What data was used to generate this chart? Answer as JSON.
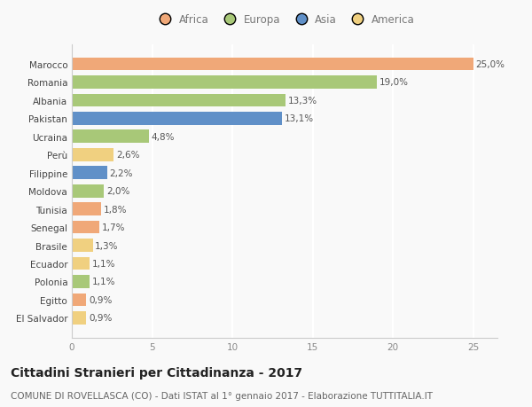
{
  "countries": [
    "Marocco",
    "Romania",
    "Albania",
    "Pakistan",
    "Ucraina",
    "Perù",
    "Filippine",
    "Moldova",
    "Tunisia",
    "Senegal",
    "Brasile",
    "Ecuador",
    "Polonia",
    "Egitto",
    "El Salvador"
  ],
  "values": [
    25.0,
    19.0,
    13.3,
    13.1,
    4.8,
    2.6,
    2.2,
    2.0,
    1.8,
    1.7,
    1.3,
    1.1,
    1.1,
    0.9,
    0.9
  ],
  "labels": [
    "25,0%",
    "19,0%",
    "13,3%",
    "13,1%",
    "4,8%",
    "2,6%",
    "2,2%",
    "2,0%",
    "1,8%",
    "1,7%",
    "1,3%",
    "1,1%",
    "1,1%",
    "0,9%",
    "0,9%"
  ],
  "continents": [
    "Africa",
    "Europa",
    "Europa",
    "Asia",
    "Europa",
    "America",
    "Asia",
    "Europa",
    "Africa",
    "Africa",
    "America",
    "America",
    "Europa",
    "Africa",
    "America"
  ],
  "continent_colors": {
    "Africa": "#F0A878",
    "Europa": "#A8C878",
    "Asia": "#6090C8",
    "America": "#F0D080"
  },
  "xlim": [
    0,
    26.5
  ],
  "xticks": [
    0,
    5,
    10,
    15,
    20,
    25
  ],
  "title": "Cittadini Stranieri per Cittadinanza - 2017",
  "subtitle": "COMUNE DI ROVELLASCA (CO) - Dati ISTAT al 1° gennaio 2017 - Elaborazione TUTTITALIA.IT",
  "background_color": "#f9f9f9",
  "grid_color": "#ffffff",
  "bar_height": 0.72,
  "title_fontsize": 10,
  "subtitle_fontsize": 7.5,
  "label_fontsize": 7.5,
  "tick_fontsize": 7.5,
  "legend_fontsize": 8.5
}
